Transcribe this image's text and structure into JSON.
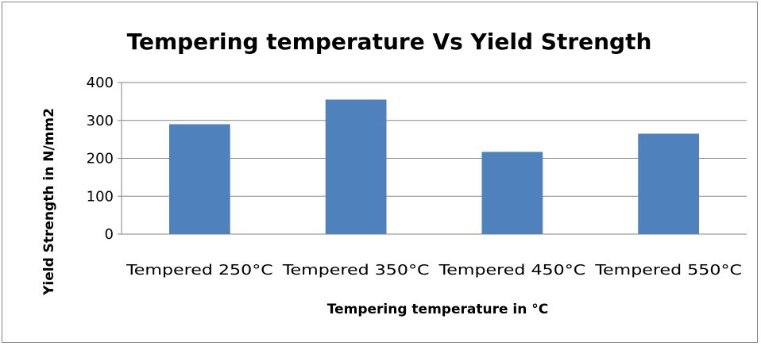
{
  "chart_data": {
    "type": "bar",
    "title": "Tempering temperature Vs Yield Strength",
    "xlabel": "Tempering temperature in °C",
    "ylabel": "Yield Strength in N/mm2",
    "categories": [
      "Tempered 250°C",
      "Tempered 350°C",
      "Tempered 450°C",
      "Tempered 550°C"
    ],
    "values": [
      290,
      355,
      217,
      265
    ],
    "ylim": [
      0,
      400
    ],
    "yticks": [
      0,
      100,
      200,
      300,
      400
    ],
    "grid": true,
    "bar_color": "#4F81BD",
    "grid_color": "#868686",
    "legend": "none"
  }
}
